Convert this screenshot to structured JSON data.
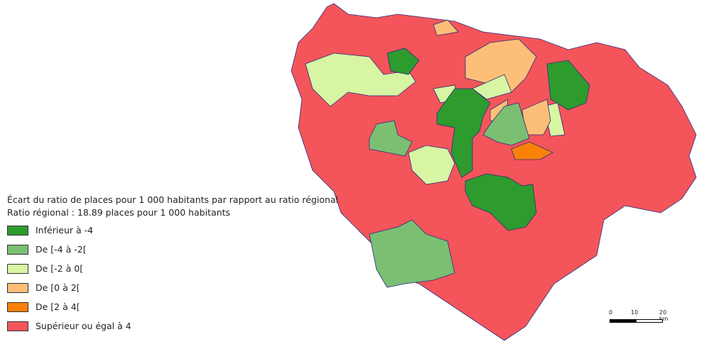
{
  "legend": {
    "title": "Écart du ratio de places pour 1 000 habitants par rapport au ratio régional",
    "subtitle": "Ratio régional : 18.89 places pour 1 000 habitants",
    "classes": [
      {
        "label": "Inférieur à -4",
        "color": "#2e9b2e"
      },
      {
        "label": "De [-4 à -2[",
        "color": "#7bbf73"
      },
      {
        "label": "De [-2 à 0[",
        "color": "#d7f5a3"
      },
      {
        "label": "De [0 à 2[",
        "color": "#fdbf77"
      },
      {
        "label": "De [2 à 4[",
        "color": "#f98108"
      },
      {
        "label": "Supérieur ou égal à 4",
        "color": "#f4555a"
      }
    ]
  },
  "scale_bar": {
    "labels": [
      "0",
      "10",
      "20 km"
    ]
  },
  "border_color": "#2b2b7a"
}
